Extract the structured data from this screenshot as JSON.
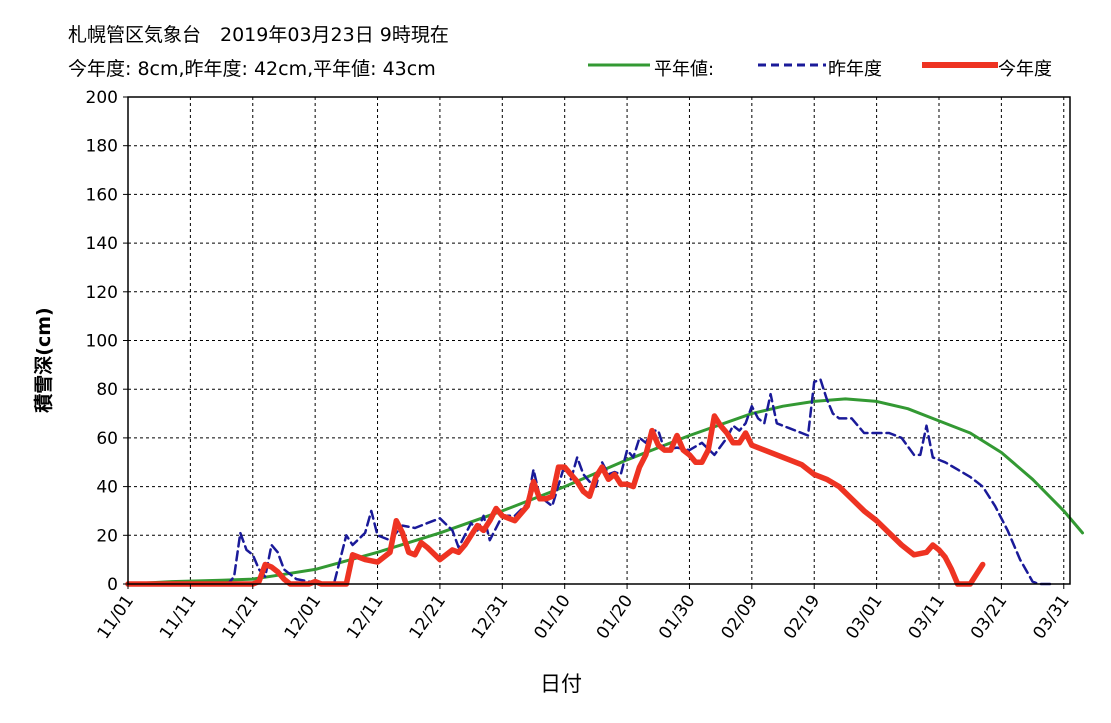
{
  "header": {
    "line1": "札幌管区気象台　2019年03月23日 9時現在",
    "line2": "今年度: 8cm,昨年度: 42cm,平年値: 43cm"
  },
  "legend": [
    {
      "label": "平年値:",
      "color": "#339933",
      "style": "solid"
    },
    {
      "label": "昨年度",
      "color": "#1a1a99",
      "style": "dashed"
    },
    {
      "label": "今年度",
      "color": "#ee3322",
      "style": "solid-thick"
    }
  ],
  "chart_data": {
    "type": "line",
    "xlabel": "日付",
    "ylabel": "積雪深(cm)",
    "ylim": [
      0,
      200
    ],
    "yticks": [
      0,
      20,
      40,
      60,
      80,
      100,
      120,
      140,
      160,
      180,
      200
    ],
    "xticks": [
      "11/01",
      "11/11",
      "11/21",
      "12/01",
      "12/11",
      "12/21",
      "12/31",
      "01/10",
      "01/20",
      "01/30",
      "02/09",
      "02/19",
      "03/01",
      "03/11",
      "03/21",
      "03/31"
    ],
    "xlim_days": [
      0,
      151
    ],
    "grid": true,
    "series": [
      {
        "name": "平年値",
        "color": "#339933",
        "points": [
          [
            0,
            0
          ],
          [
            7,
            1
          ],
          [
            15,
            1.5
          ],
          [
            20,
            2
          ],
          [
            25,
            4
          ],
          [
            30,
            6
          ],
          [
            40,
            13
          ],
          [
            50,
            21
          ],
          [
            60,
            30
          ],
          [
            70,
            40
          ],
          [
            80,
            51
          ],
          [
            90,
            61
          ],
          [
            100,
            70
          ],
          [
            105,
            73
          ],
          [
            110,
            75
          ],
          [
            115,
            76
          ],
          [
            120,
            75
          ],
          [
            125,
            72
          ],
          [
            130,
            67
          ],
          [
            135,
            62
          ],
          [
            140,
            54
          ],
          [
            145,
            43
          ],
          [
            150,
            30
          ],
          [
            153,
            21
          ]
        ]
      },
      {
        "name": "昨年度",
        "color": "#1a1a99",
        "points": [
          [
            0,
            0
          ],
          [
            16,
            0
          ],
          [
            17,
            3
          ],
          [
            18,
            21
          ],
          [
            19,
            14
          ],
          [
            20,
            12
          ],
          [
            21,
            6
          ],
          [
            22,
            3
          ],
          [
            23,
            16
          ],
          [
            24,
            13
          ],
          [
            25,
            6
          ],
          [
            26,
            4
          ],
          [
            27,
            2
          ],
          [
            29,
            1
          ],
          [
            32,
            0
          ],
          [
            33,
            0
          ],
          [
            35,
            20
          ],
          [
            36,
            16
          ],
          [
            38,
            21
          ],
          [
            39,
            30
          ],
          [
            40,
            20
          ],
          [
            42,
            18
          ],
          [
            44,
            24
          ],
          [
            46,
            23
          ],
          [
            48,
            25
          ],
          [
            50,
            27
          ],
          [
            52,
            22
          ],
          [
            53,
            15
          ],
          [
            55,
            25
          ],
          [
            56,
            22
          ],
          [
            57,
            28
          ],
          [
            58,
            18
          ],
          [
            60,
            28
          ],
          [
            62,
            28
          ],
          [
            64,
            33
          ],
          [
            65,
            47
          ],
          [
            66,
            36
          ],
          [
            68,
            32
          ],
          [
            70,
            49
          ],
          [
            71,
            43
          ],
          [
            72,
            52
          ],
          [
            73,
            45
          ],
          [
            74,
            42
          ],
          [
            75,
            40
          ],
          [
            76,
            50
          ],
          [
            77,
            45
          ],
          [
            78,
            46
          ],
          [
            79,
            45
          ],
          [
            80,
            55
          ],
          [
            81,
            52
          ],
          [
            82,
            60
          ],
          [
            83,
            58
          ],
          [
            84,
            63
          ],
          [
            85,
            63
          ],
          [
            86,
            55
          ],
          [
            88,
            56
          ],
          [
            90,
            55
          ],
          [
            92,
            58
          ],
          [
            94,
            53
          ],
          [
            96,
            60
          ],
          [
            97,
            65
          ],
          [
            98,
            63
          ],
          [
            99,
            66
          ],
          [
            100,
            73
          ],
          [
            101,
            68
          ],
          [
            102,
            66
          ],
          [
            103,
            78
          ],
          [
            104,
            66
          ],
          [
            106,
            64
          ],
          [
            108,
            62
          ],
          [
            109,
            61
          ],
          [
            110,
            83
          ],
          [
            111,
            84
          ],
          [
            112,
            76
          ],
          [
            113,
            70
          ],
          [
            114,
            68
          ],
          [
            116,
            68
          ],
          [
            118,
            62
          ],
          [
            120,
            62
          ],
          [
            122,
            62
          ],
          [
            124,
            60
          ],
          [
            126,
            53
          ],
          [
            127,
            53
          ],
          [
            128,
            65
          ],
          [
            129,
            52
          ],
          [
            131,
            50
          ],
          [
            133,
            47
          ],
          [
            135,
            44
          ],
          [
            137,
            40
          ],
          [
            139,
            32
          ],
          [
            141,
            22
          ],
          [
            143,
            10
          ],
          [
            145,
            1
          ],
          [
            146,
            0
          ],
          [
            148,
            0
          ]
        ]
      },
      {
        "name": "今年度",
        "color": "#ee3322",
        "points": [
          [
            0,
            0
          ],
          [
            20,
            0
          ],
          [
            21,
            1
          ],
          [
            22,
            8
          ],
          [
            23,
            7
          ],
          [
            24,
            5
          ],
          [
            25,
            2
          ],
          [
            26,
            0
          ],
          [
            29,
            0
          ],
          [
            30,
            1
          ],
          [
            31,
            0
          ],
          [
            35,
            0
          ],
          [
            36,
            12
          ],
          [
            38,
            10
          ],
          [
            40,
            9
          ],
          [
            42,
            13
          ],
          [
            43,
            26
          ],
          [
            44,
            21
          ],
          [
            45,
            13
          ],
          [
            46,
            12
          ],
          [
            47,
            17
          ],
          [
            48,
            15
          ],
          [
            50,
            10
          ],
          [
            52,
            14
          ],
          [
            53,
            13
          ],
          [
            54,
            16
          ],
          [
            55,
            20
          ],
          [
            56,
            24
          ],
          [
            57,
            22
          ],
          [
            58,
            26
          ],
          [
            59,
            31
          ],
          [
            60,
            28
          ],
          [
            62,
            26
          ],
          [
            64,
            32
          ],
          [
            65,
            42
          ],
          [
            66,
            35
          ],
          [
            67,
            35
          ],
          [
            68,
            36
          ],
          [
            69,
            48
          ],
          [
            70,
            48
          ],
          [
            71,
            45
          ],
          [
            72,
            42
          ],
          [
            73,
            38
          ],
          [
            74,
            36
          ],
          [
            75,
            44
          ],
          [
            76,
            48
          ],
          [
            77,
            43
          ],
          [
            78,
            45
          ],
          [
            79,
            41
          ],
          [
            80,
            41
          ],
          [
            81,
            40
          ],
          [
            82,
            48
          ],
          [
            83,
            53
          ],
          [
            84,
            63
          ],
          [
            85,
            57
          ],
          [
            86,
            55
          ],
          [
            87,
            55
          ],
          [
            88,
            61
          ],
          [
            89,
            55
          ],
          [
            90,
            53
          ],
          [
            91,
            50
          ],
          [
            92,
            50
          ],
          [
            93,
            55
          ],
          [
            94,
            69
          ],
          [
            95,
            65
          ],
          [
            96,
            62
          ],
          [
            97,
            58
          ],
          [
            98,
            58
          ],
          [
            99,
            62
          ],
          [
            100,
            57
          ],
          [
            102,
            55
          ],
          [
            104,
            53
          ],
          [
            106,
            51
          ],
          [
            108,
            49
          ],
          [
            110,
            45
          ],
          [
            112,
            43
          ],
          [
            114,
            40
          ],
          [
            116,
            35
          ],
          [
            118,
            30
          ],
          [
            120,
            26
          ],
          [
            122,
            21
          ],
          [
            124,
            16
          ],
          [
            126,
            12
          ],
          [
            128,
            13
          ],
          [
            129,
            16
          ],
          [
            130,
            14
          ],
          [
            131,
            11
          ],
          [
            132,
            6
          ],
          [
            133,
            0
          ],
          [
            135,
            0
          ],
          [
            136,
            4
          ],
          [
            137,
            8
          ]
        ]
      }
    ]
  }
}
